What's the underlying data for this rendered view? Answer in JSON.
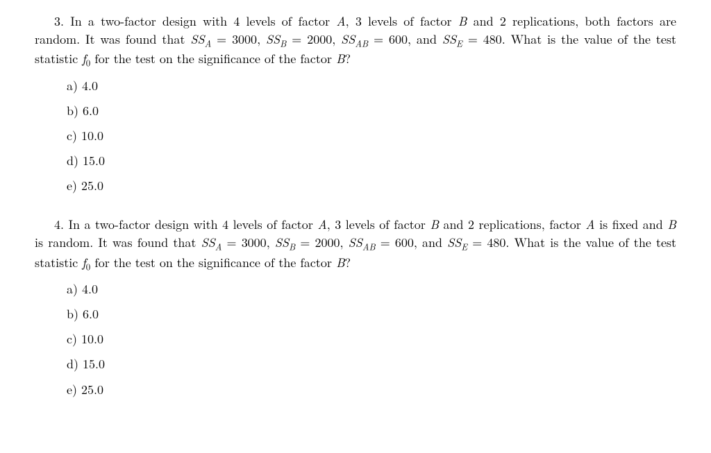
{
  "q3": {
    "num": "3.",
    "text_part1": "In a two-factor design with 4 levels of factor ",
    "A": "A",
    "text_part2": ", 3 levels of factor ",
    "B": "B",
    "text_part3": " and 2 replications, both factors are random.  It was found that ",
    "ss_a_lhs": "SS",
    "ss_a_sub": "A",
    "eq": " = ",
    "ss_a_val": "3000",
    "sep": ", ",
    "ss_b_lhs": "SS",
    "ss_b_sub": "B",
    "ss_b_val": "2000",
    "ss_ab_lhs": "SS",
    "ss_ab_sub": "AB",
    "ss_ab_val": "600",
    "and": ", and ",
    "ss_e_lhs": "SS",
    "ss_e_sub": "E",
    "ss_e_val": "480",
    "period": ". ",
    "text_part4": "What is the value of the test statistic ",
    "f0": "f",
    "f0_sub": "0",
    "text_part5": " for the test on the significance of the factor ",
    "text_end": "?",
    "options": {
      "a": "a) 4.0",
      "b": "b) 6.0",
      "c": "c) 10.0",
      "d": "d) 15.0",
      "e": "e) 25.0"
    }
  },
  "q4": {
    "num": "4.",
    "text_part1": "In a two-factor design with 4 levels of factor ",
    "A": "A",
    "text_part2": ", 3 levels of factor ",
    "B": "B",
    "text_part3": " and 2 replications, factor ",
    "text_part3b": " is fixed and ",
    "text_part3c": " is random.  It was found that ",
    "ss_a_lhs": "SS",
    "ss_a_sub": "A",
    "eq": " = ",
    "ss_a_val": "3000",
    "sep": ", ",
    "ss_b_lhs": "SS",
    "ss_b_sub": "B",
    "ss_b_val": "2000",
    "ss_ab_lhs": "SS",
    "ss_ab_sub": "AB",
    "ss_ab_val": "600",
    "and": ", and ",
    "ss_e_lhs": "SS",
    "ss_e_sub": "E",
    "ss_e_val": "480",
    "period": ".  ",
    "text_part4": "What is the value of the test statistic ",
    "f0": "f",
    "f0_sub": "0",
    "text_part5": " for the test on the significance of the factor ",
    "text_end": "?",
    "options": {
      "a": "a) 4.0",
      "b": "b) 6.0",
      "c": "c) 10.0",
      "d": "d) 15.0",
      "e": "e) 25.0"
    }
  }
}
